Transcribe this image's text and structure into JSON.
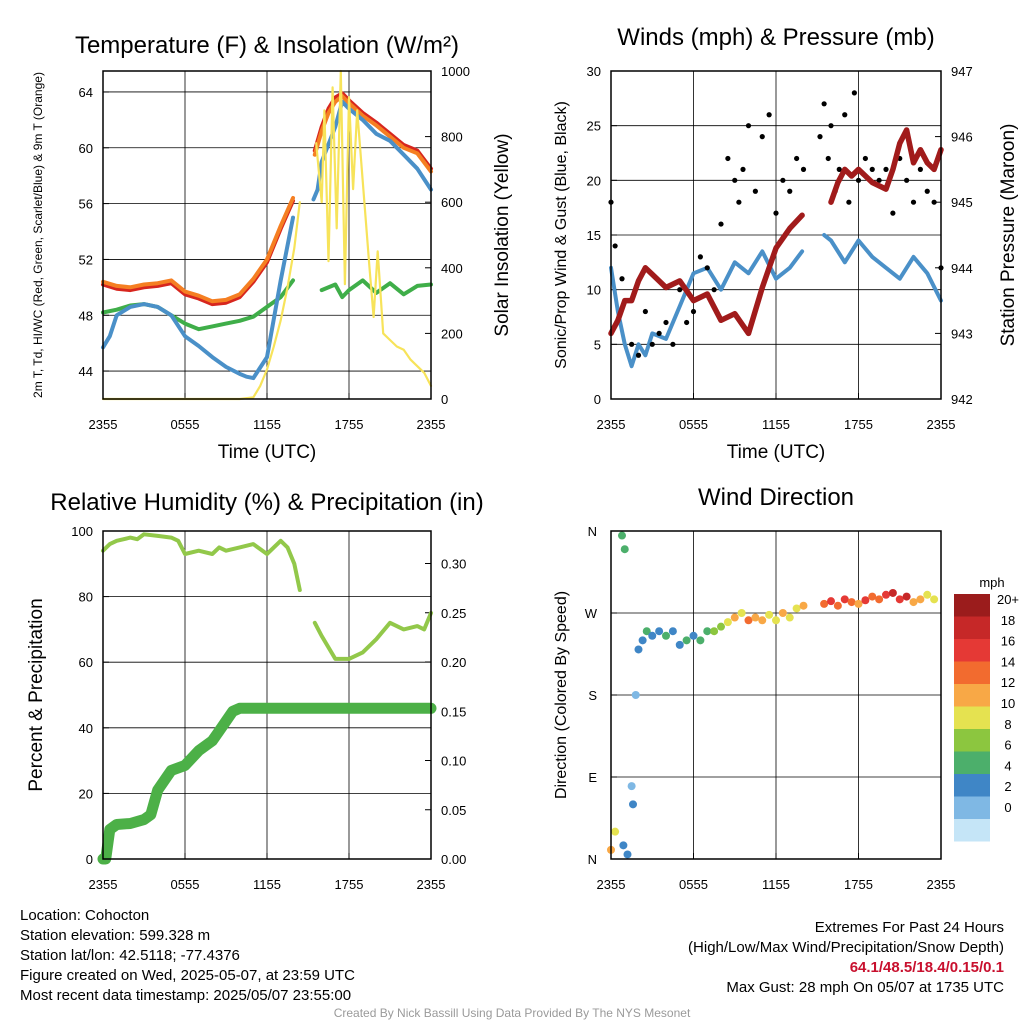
{
  "colors": {
    "red": "#d7261e",
    "orange": "#f57f22",
    "green": "#3fae49",
    "blue": "#4a90c8",
    "yellow": "#f7e35a",
    "maroon": "#a11b1b",
    "black": "#000000",
    "rh": "#92c84a",
    "precip": "#4cb047",
    "credit": "#9a9a9a",
    "extremes": "#c8102e"
  },
  "info": {
    "location": "Location: Cohocton",
    "elevation": "Station elevation: 599.328 m",
    "latlon": "Station lat/lon: 42.5118; -77.4376",
    "created": "Figure created on Wed, 2025-05-07, at 23:59 UTC",
    "recent": "Most recent data timestamp: 2025/05/07 23:55:00"
  },
  "extremes": {
    "title": "Extremes For Past 24 Hours",
    "subtitle": "(High/Low/Max Wind/Precipitation/Snow Depth)",
    "values": "64.1/48.5/18.4/0.15/0.1",
    "gust": "Max Gust: 28 mph On 05/07 at 1735 UTC"
  },
  "credit": "Created By Nick Bassill Using Data Provided By The NYS Mesonet",
  "chart_data": [
    {
      "id": "temp",
      "type": "line",
      "title": "Temperature (F) & Insolation (W/m²)",
      "xlabel": "Time (UTC)",
      "ylabel": "2m T, Td, HI/WC (Red, Green, Scarlet/Blue) & 9m T (Orange)",
      "y2label": "Solar Insolation (Yellow)",
      "x_ticks": [
        "2355",
        "0555",
        "1155",
        "1755",
        "2355"
      ],
      "xlim": [
        0,
        24
      ],
      "ylim": [
        42,
        65.5
      ],
      "y_ticks": [
        44,
        48,
        52,
        56,
        60,
        64
      ],
      "y2lim": [
        0,
        1000
      ],
      "y2_ticks": [
        0,
        200,
        400,
        600,
        800,
        1000
      ],
      "series": [
        {
          "name": "2m T",
          "color": "#d7261e",
          "axis": "y",
          "x": [
            0,
            1,
            2,
            3,
            4,
            5,
            6,
            7,
            8,
            9,
            10,
            11,
            12,
            13,
            13.9,
            15.1,
            15.5,
            16,
            16.5,
            17,
            17.5,
            18,
            19,
            20,
            21,
            22,
            23,
            24
          ],
          "y": [
            50.2,
            49.9,
            49.8,
            50.0,
            50.1,
            50.3,
            49.5,
            49.2,
            48.8,
            48.9,
            49.3,
            50.4,
            51.8,
            54.2,
            56.2,
            null,
            59.8,
            61.5,
            62.8,
            63.6,
            63.9,
            63.4,
            62.5,
            61.8,
            61.0,
            60.2,
            59.8,
            58.5
          ]
        },
        {
          "name": "9m T",
          "color": "#f57f22",
          "axis": "y",
          "x": [
            0,
            1,
            2,
            3,
            4,
            5,
            6,
            7,
            8,
            9,
            10,
            11,
            12,
            13,
            13.9,
            15.1,
            15.5,
            16,
            16.5,
            17,
            17.5,
            18,
            19,
            20,
            21,
            22,
            23,
            24
          ],
          "y": [
            50.4,
            50.1,
            50.0,
            50.2,
            50.3,
            50.5,
            49.7,
            49.4,
            49.0,
            49.1,
            49.5,
            50.6,
            52.0,
            54.4,
            56.4,
            null,
            59.5,
            61.2,
            62.5,
            63.3,
            63.7,
            63.2,
            62.3,
            61.6,
            60.8,
            60.0,
            59.6,
            58.3
          ]
        },
        {
          "name": "2m Td",
          "color": "#3fae49",
          "axis": "y",
          "x": [
            0,
            1,
            2,
            3,
            4,
            5,
            6,
            7,
            8,
            9,
            10,
            11,
            12,
            13,
            13.9,
            15.1,
            16,
            17,
            17.5,
            18,
            19,
            20,
            21,
            22,
            23,
            24
          ],
          "y": [
            48.2,
            48.4,
            48.7,
            48.8,
            48.6,
            48.0,
            47.4,
            47.0,
            47.2,
            47.4,
            47.6,
            47.9,
            48.6,
            49.3,
            50.5,
            null,
            49.8,
            50.2,
            49.3,
            49.8,
            50.5,
            49.6,
            50.3,
            49.5,
            50.1,
            50.2
          ]
        },
        {
          "name": "HI/WC",
          "color": "#4a90c8",
          "axis": "y",
          "x": [
            0,
            0.5,
            1,
            2,
            3,
            4,
            5,
            6,
            7,
            8,
            9,
            10,
            10.5,
            11,
            12,
            13,
            13.9,
            15.1,
            15.4,
            15.7,
            16,
            17,
            17.5,
            18,
            19,
            20,
            21,
            22,
            23,
            24
          ],
          "y": [
            45.7,
            46.5,
            48.0,
            48.6,
            48.8,
            48.6,
            48.0,
            46.5,
            45.8,
            45.0,
            44.3,
            43.8,
            43.6,
            43.5,
            45.0,
            50.5,
            55.0,
            null,
            56.3,
            57.0,
            59.0,
            61.5,
            63.3,
            62.8,
            62.0,
            61.0,
            60.5,
            59.5,
            58.5,
            57.0
          ]
        },
        {
          "name": "Solar Insolation",
          "color": "#f7e35a",
          "axis": "y2",
          "x": [
            0,
            1,
            2,
            4,
            6,
            8,
            10,
            11,
            11.5,
            12,
            12.5,
            13,
            13.5,
            14,
            14.4,
            15.2,
            15.6,
            16,
            16.2,
            16.5,
            16.8,
            17.1,
            17.4,
            17.7,
            18,
            18.3,
            18.6,
            18.9,
            19.2,
            19.5,
            19.8,
            20.1,
            20.5,
            21,
            21.5,
            22,
            22.5,
            23,
            23.5,
            24
          ],
          "y": [
            0,
            0,
            0,
            0,
            0,
            0,
            0,
            5,
            40,
            90,
            160,
            240,
            340,
            460,
            600,
            null,
            780,
            600,
            880,
            420,
            950,
            520,
            1000,
            350,
            920,
            640,
            880,
            720,
            560,
            400,
            250,
            450,
            200,
            180,
            160,
            150,
            120,
            100,
            80,
            40
          ]
        }
      ]
    },
    {
      "id": "wind",
      "type": "line",
      "title": "Winds (mph) & Pressure (mb)",
      "xlabel": "Time (UTC)",
      "ylabel": "Sonic/Prop Wind & Gust (Blue, Black)",
      "y2label": "Station Pressure (Maroon)",
      "x_ticks": [
        "2355",
        "0555",
        "1155",
        "1755",
        "2355"
      ],
      "xlim": [
        0,
        24
      ],
      "ylim": [
        0,
        30
      ],
      "y_ticks": [
        0,
        5,
        10,
        15,
        20,
        25,
        30
      ],
      "y2lim": [
        942,
        947
      ],
      "y2_ticks": [
        942,
        943,
        944,
        945,
        946,
        947
      ],
      "series": [
        {
          "name": "Wind",
          "color": "#4a90c8",
          "axis": "y",
          "x": [
            0,
            0.5,
            1,
            1.5,
            2,
            2.5,
            3,
            4,
            5,
            6,
            7,
            8,
            9,
            10,
            11,
            12,
            13,
            13.9,
            15.1,
            15.5,
            16,
            17,
            18,
            19,
            20,
            21,
            22,
            23,
            24
          ],
          "y": [
            12.0,
            8.0,
            5.0,
            3.0,
            5.0,
            4.0,
            6.0,
            5.5,
            8.5,
            11.5,
            12.0,
            10.0,
            12.5,
            11.5,
            13.5,
            11.0,
            12.0,
            13.5,
            null,
            15.0,
            14.5,
            12.5,
            14.5,
            13.0,
            12.0,
            11.0,
            13.0,
            11.5,
            9.0
          ]
        },
        {
          "name": "Gust",
          "color": "#000000",
          "axis": "y",
          "x": [
            0,
            0.3,
            0.8,
            1.5,
            2,
            2.5,
            3,
            3.5,
            4,
            4.5,
            5,
            5.5,
            6,
            6.5,
            7,
            7.5,
            8,
            8.5,
            9,
            9.3,
            9.6,
            10,
            10.5,
            11,
            11.5,
            12,
            12.5,
            13,
            13.5,
            14,
            15.2,
            15.5,
            15.8,
            16,
            16.3,
            16.6,
            17,
            17.3,
            17.7,
            18,
            18.5,
            19,
            19.5,
            20,
            20.5,
            21,
            21.5,
            22,
            22.5,
            23,
            23.5,
            24
          ],
          "y": [
            18,
            14,
            11,
            5,
            4,
            8,
            5,
            6,
            7,
            5,
            10,
            7,
            8,
            13,
            12,
            10,
            16,
            22,
            20,
            18,
            21,
            25,
            19,
            24,
            26,
            17,
            20,
            19,
            22,
            21,
            24,
            27,
            22,
            25,
            19,
            21,
            26,
            18,
            28,
            20,
            22,
            21,
            20,
            21,
            17,
            22,
            20,
            18,
            21,
            19,
            18,
            12
          ]
        },
        {
          "name": "Station Pressure",
          "color": "#a11b1b",
          "axis": "y2",
          "x": [
            0,
            0.5,
            1,
            1.5,
            2,
            2.5,
            3,
            4,
            5,
            6,
            7,
            8,
            9,
            10,
            11,
            12,
            13,
            13.9,
            15.1,
            16,
            16.5,
            17,
            17.5,
            18,
            19,
            20,
            20.5,
            21,
            21.5,
            22,
            22.5,
            23,
            23.5,
            24
          ],
          "y": [
            943.0,
            943.2,
            943.5,
            943.5,
            943.8,
            944.0,
            943.9,
            943.7,
            943.8,
            943.5,
            943.6,
            943.2,
            943.3,
            943.0,
            943.7,
            944.3,
            944.6,
            944.8,
            null,
            945.0,
            945.3,
            945.5,
            945.4,
            945.5,
            945.3,
            945.2,
            945.5,
            945.9,
            946.1,
            945.6,
            945.8,
            945.6,
            945.5,
            945.8
          ]
        }
      ]
    },
    {
      "id": "rh",
      "type": "line",
      "title": "Relative Humidity (%) & Precipitation (in)",
      "ylabel": "Percent & Precipitation",
      "x_ticks": [
        "2355",
        "0555",
        "1155",
        "1755",
        "2355"
      ],
      "xlim": [
        0,
        24
      ],
      "ylim": [
        0,
        100
      ],
      "y_ticks": [
        0,
        20,
        40,
        60,
        80,
        100
      ],
      "y2lim": [
        0,
        0.333
      ],
      "y2_ticks": [
        "0.00",
        "0.05",
        "0.10",
        "0.15",
        "0.20",
        "0.25",
        "0.30"
      ],
      "series": [
        {
          "name": "Relative Humidity",
          "color": "#92c84a",
          "axis": "y",
          "x": [
            0,
            0.5,
            1,
            2,
            2.5,
            3,
            4,
            5,
            5.5,
            6,
            7,
            8,
            8.5,
            9,
            10,
            11,
            12,
            13,
            13.5,
            14,
            14.4,
            15.1,
            15.5,
            16,
            17,
            18,
            19,
            20,
            21,
            22,
            23,
            23.5,
            24
          ],
          "y": [
            94,
            96,
            97,
            98,
            97.5,
            99,
            98.5,
            98,
            97,
            93,
            94,
            93,
            95,
            94,
            95,
            96,
            93,
            97,
            95,
            90,
            82,
            null,
            72,
            68,
            61,
            61,
            63,
            67,
            72,
            70,
            71,
            70,
            75
          ]
        },
        {
          "name": "Precipitation",
          "color": "#4cb047",
          "axis": "y2",
          "x": [
            0,
            0.2,
            0.5,
            1,
            2,
            3,
            3.5,
            4,
            4.5,
            5,
            6,
            7,
            8,
            8.5,
            9,
            9.5,
            10,
            11,
            12,
            13,
            13.9,
            14.8,
            16,
            18,
            20,
            22,
            24
          ],
          "y": [
            0,
            0,
            0.03,
            0.035,
            0.036,
            0.04,
            0.045,
            0.07,
            0.08,
            0.09,
            0.095,
            0.11,
            0.12,
            0.13,
            0.14,
            0.15,
            0.153,
            0.153,
            0.153,
            0.153,
            0.153,
            0.153,
            0.153,
            0.153,
            0.153,
            0.153,
            0.153
          ]
        }
      ]
    },
    {
      "id": "dir",
      "type": "scatter",
      "title": "Wind Direction",
      "ylabel": "Direction (Colored By Speed)",
      "x_ticks": [
        "2355",
        "0555",
        "1155",
        "1755",
        "2355"
      ],
      "xlim": [
        0,
        24
      ],
      "ylim": [
        0,
        360
      ],
      "y_tick_labels": [
        "N",
        "E",
        "S",
        "W",
        "N"
      ],
      "legend": {
        "title": "mph",
        "labels": [
          "20+",
          "18",
          "16",
          "14",
          "12",
          "10",
          "8",
          "6",
          "4",
          "2",
          "0"
        ],
        "colors": [
          "#9b1c1c",
          "#c62828",
          "#e53935",
          "#f26b2f",
          "#f8a846",
          "#e5e250",
          "#8cc63f",
          "#4caf6b",
          "#3f86c6",
          "#7fb8e4",
          "#c5e5f7"
        ]
      },
      "points": [
        [
          0,
          10,
          11
        ],
        [
          0.3,
          30,
          9
        ],
        [
          0.8,
          355,
          6
        ],
        [
          1.0,
          340,
          5
        ],
        [
          0.9,
          15,
          4
        ],
        [
          1.2,
          5,
          3
        ],
        [
          1.5,
          80,
          2
        ],
        [
          1.6,
          60,
          3
        ],
        [
          1.8,
          180,
          2
        ],
        [
          2.0,
          230,
          3
        ],
        [
          2.3,
          240,
          4
        ],
        [
          2.6,
          250,
          5
        ],
        [
          3.0,
          245,
          4
        ],
        [
          3.5,
          250,
          4
        ],
        [
          4.0,
          245,
          5
        ],
        [
          4.5,
          250,
          4
        ],
        [
          5.0,
          235,
          4
        ],
        [
          5.5,
          240,
          5
        ],
        [
          6.0,
          245,
          4
        ],
        [
          6.5,
          240,
          6
        ],
        [
          7.0,
          250,
          5
        ],
        [
          7.5,
          250,
          7
        ],
        [
          8.0,
          255,
          8
        ],
        [
          8.5,
          260,
          9
        ],
        [
          9.0,
          265,
          12
        ],
        [
          9.5,
          270,
          10
        ],
        [
          10.0,
          262,
          13
        ],
        [
          10.5,
          265,
          12
        ],
        [
          11.0,
          262,
          11
        ],
        [
          11.5,
          268,
          10
        ],
        [
          12.0,
          262,
          10
        ],
        [
          12.5,
          270,
          11
        ],
        [
          13.0,
          265,
          9
        ],
        [
          13.5,
          275,
          10
        ],
        [
          14.0,
          278,
          12
        ],
        [
          15.5,
          280,
          14
        ],
        [
          16.0,
          283,
          15
        ],
        [
          16.5,
          278,
          13
        ],
        [
          17.0,
          285,
          16
        ],
        [
          17.5,
          282,
          14
        ],
        [
          18.0,
          280,
          12
        ],
        [
          18.5,
          284,
          15
        ],
        [
          19.0,
          288,
          13
        ],
        [
          19.5,
          285,
          14
        ],
        [
          20.0,
          290,
          16
        ],
        [
          20.5,
          292,
          18
        ],
        [
          21.0,
          285,
          15
        ],
        [
          21.5,
          288,
          17
        ],
        [
          22.0,
          282,
          12
        ],
        [
          22.5,
          285,
          11
        ],
        [
          23.0,
          290,
          10
        ],
        [
          23.5,
          285,
          9
        ]
      ]
    }
  ]
}
